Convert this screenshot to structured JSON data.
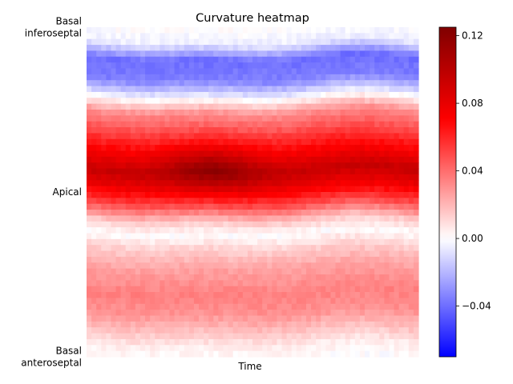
{
  "chart_data": {
    "type": "heatmap",
    "title": "Curvature heatmap",
    "xlabel": "Time",
    "ylabel": "",
    "y_tick_labels": [
      [
        "Basal",
        "inferoseptal"
      ],
      [
        "Apical"
      ],
      [
        "Basal",
        "anteroseptal"
      ]
    ],
    "y_tick_positions": [
      0,
      0.5,
      1
    ],
    "grid": false,
    "colormap": "seismic",
    "colorbar": {
      "vmin": -0.07,
      "vmax": 0.125,
      "ticks": [
        -0.04,
        0.0,
        0.04,
        0.08,
        0.12
      ],
      "tick_labels": [
        "−0.04",
        "0.00",
        "0.04",
        "0.08",
        "0.12"
      ]
    },
    "n_rows": 56,
    "n_cols": 68,
    "profile": [
      {
        "pos": 0.0,
        "value": 0.0
      },
      {
        "pos": 0.04,
        "value": -0.005
      },
      {
        "pos": 0.09,
        "value": -0.04
      },
      {
        "pos": 0.15,
        "value": -0.035
      },
      {
        "pos": 0.2,
        "value": -0.005
      },
      {
        "pos": 0.25,
        "value": 0.03
      },
      {
        "pos": 0.31,
        "value": 0.05
      },
      {
        "pos": 0.38,
        "value": 0.075
      },
      {
        "pos": 0.43,
        "value": 0.095
      },
      {
        "pos": 0.47,
        "value": 0.08
      },
      {
        "pos": 0.53,
        "value": 0.05
      },
      {
        "pos": 0.58,
        "value": 0.015
      },
      {
        "pos": 0.62,
        "value": 0.0
      },
      {
        "pos": 0.66,
        "value": 0.012
      },
      {
        "pos": 0.72,
        "value": 0.025
      },
      {
        "pos": 0.8,
        "value": 0.035
      },
      {
        "pos": 0.86,
        "value": 0.03
      },
      {
        "pos": 0.92,
        "value": 0.015
      },
      {
        "pos": 0.96,
        "value": 0.005
      },
      {
        "pos": 1.0,
        "value": 0.0
      }
    ]
  }
}
